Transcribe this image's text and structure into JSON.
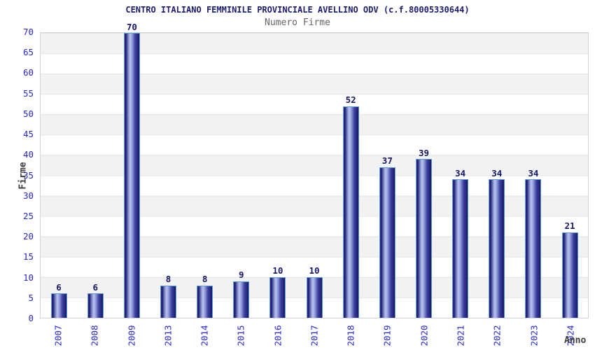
{
  "chart_data": {
    "type": "bar",
    "title": "CENTRO ITALIANO FEMMINILE PROVINCIALE AVELLINO ODV (c.f.80005330644)",
    "subtitle": "Numero Firme",
    "xlabel": "Anno",
    "ylabel": "Firme",
    "categories": [
      "2007",
      "2008",
      "2009",
      "2013",
      "2014",
      "2015",
      "2016",
      "2017",
      "2018",
      "2019",
      "2020",
      "2021",
      "2022",
      "2023",
      "2024"
    ],
    "values": [
      6,
      6,
      70,
      8,
      8,
      9,
      10,
      10,
      52,
      37,
      39,
      34,
      34,
      34,
      21
    ],
    "ylim": [
      0,
      70
    ],
    "yticks": [
      0,
      5,
      10,
      15,
      20,
      25,
      30,
      35,
      40,
      45,
      50,
      55,
      60,
      65,
      70
    ],
    "grid": "horizontal-bands-on",
    "legend": "none",
    "bar_labels": "shown-above-bars"
  },
  "colors": {
    "title": "#1b1b70",
    "subtitle": "#666666",
    "axis_tick": "#2727cf",
    "value_label": "#16166b",
    "axis_title": "#3d3d3d",
    "bar_border": "#5e9fd6",
    "bar_dark": "#181868",
    "bar_mid": "#30309a",
    "bar_light": "#bcc3ee",
    "band_gray": "#f2f2f2",
    "band_white": "#ffffff",
    "grid_line": "#e3e3e3",
    "plot_border": "#d5d5d5",
    "background": "#ffffff"
  }
}
